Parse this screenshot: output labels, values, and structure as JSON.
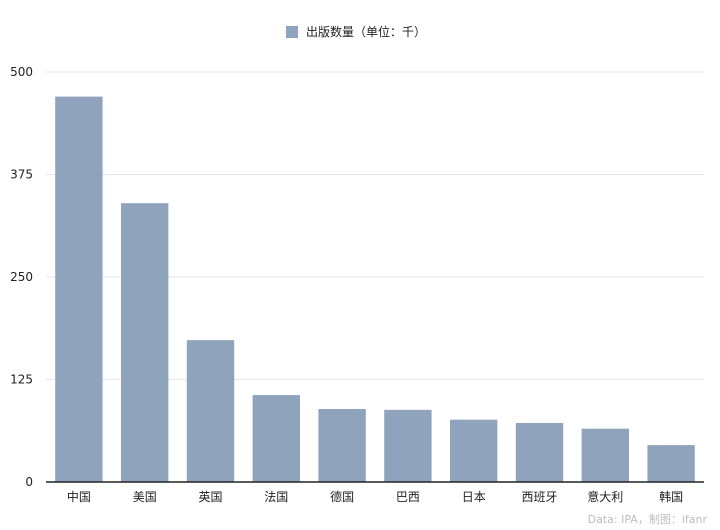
{
  "chart_data": {
    "type": "bar",
    "title": "",
    "xlabel": "",
    "ylabel": "",
    "categories": [
      "中国",
      "美国",
      "英国",
      "法国",
      "德国",
      "巴西",
      "日本",
      "西班牙",
      "意大利",
      "韩国"
    ],
    "series": [
      {
        "name": "出版数量（单位：千）",
        "values": [
          470,
          340,
          173,
          106,
          89,
          88,
          76,
          72,
          65,
          45
        ]
      }
    ],
    "ylim": [
      0,
      500
    ],
    "yticks": [
      "0",
      "125",
      "250",
      "375",
      "500"
    ],
    "grid": true,
    "legend_position": "top-center",
    "colors": {
      "bar": "#8fa3bd",
      "grid": "#e6e6e6",
      "axis": "#222222"
    }
  },
  "source": "Data: IPA，制图：ifanr"
}
